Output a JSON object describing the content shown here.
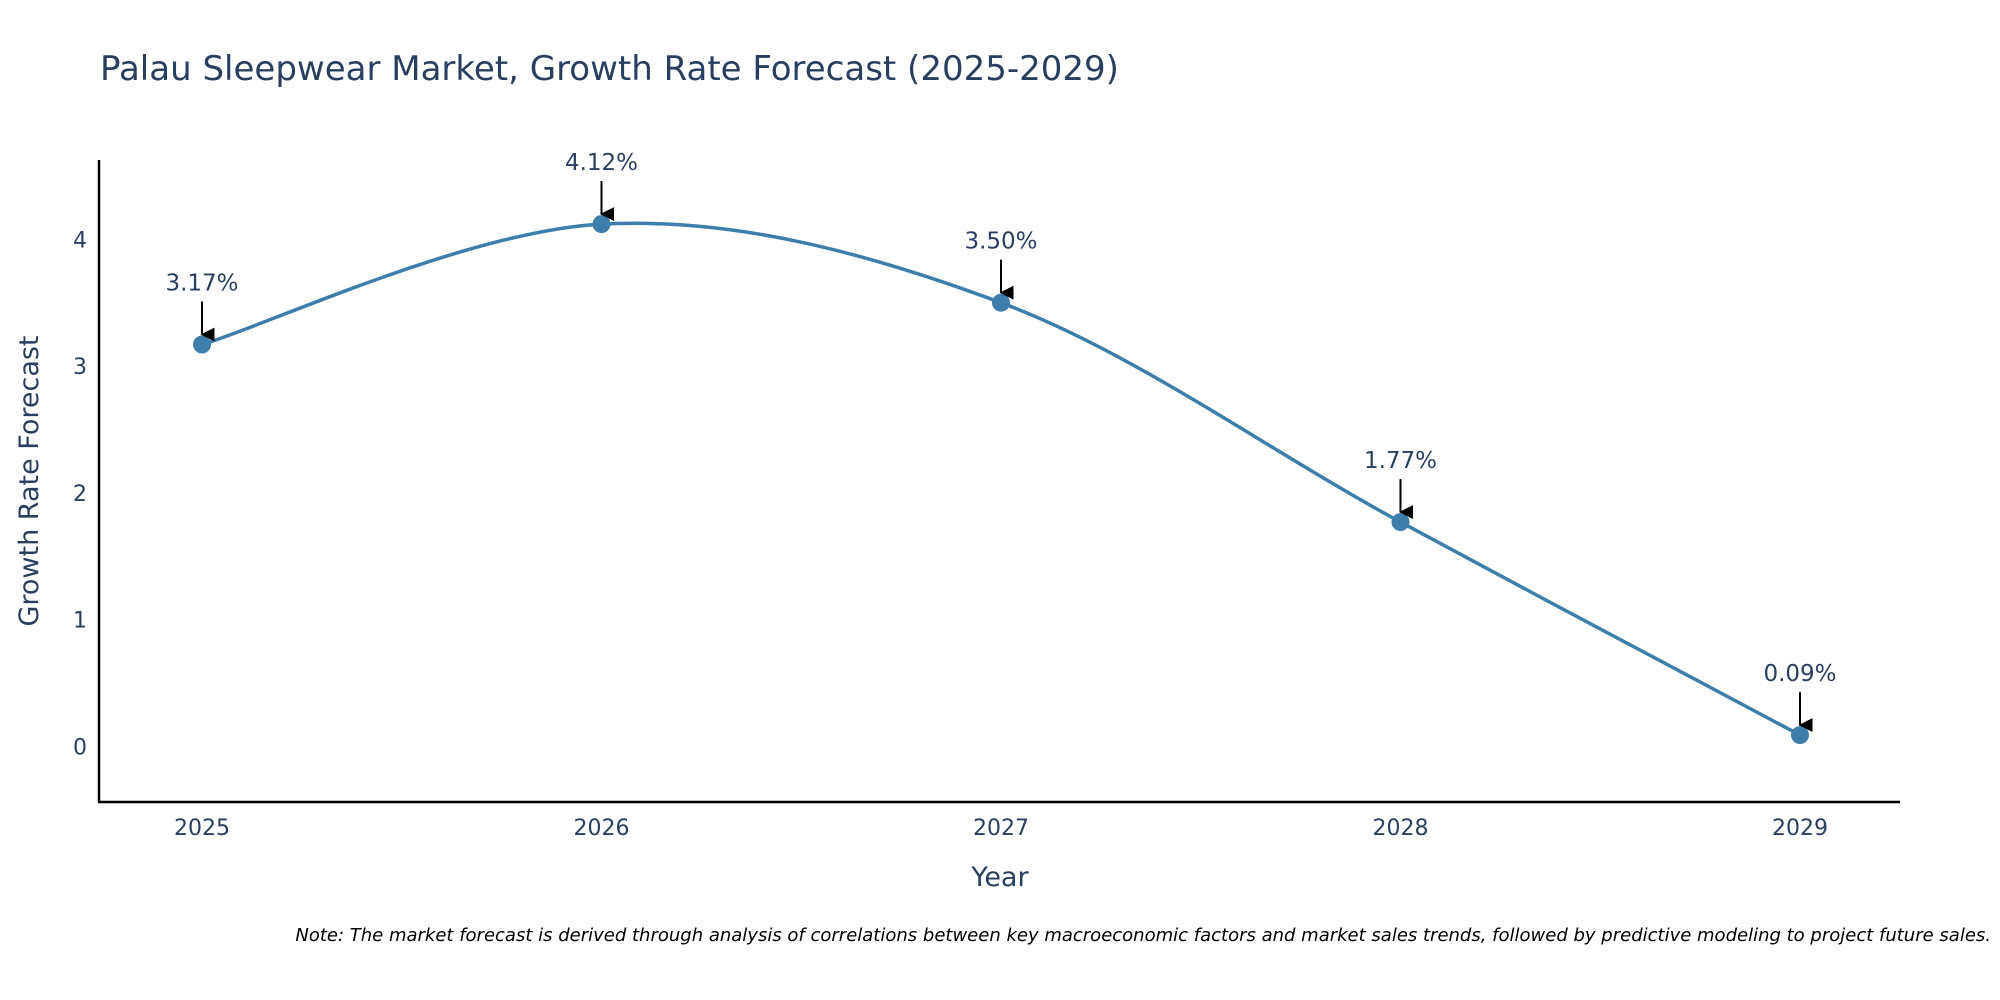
{
  "chart_data": {
    "type": "line",
    "title": "Palau Sleepwear Market, Growth Rate Forecast (2025-2029)",
    "xlabel": "Year",
    "ylabel": "Growth Rate Forecast",
    "categories": [
      "2025",
      "2026",
      "2027",
      "2028",
      "2029"
    ],
    "series": [
      {
        "name": "Growth Rate Forecast",
        "values": [
          3.17,
          4.12,
          3.5,
          1.77,
          0.09
        ],
        "labels": [
          "3.17%",
          "4.12%",
          "3.50%",
          "1.77%",
          "0.09%"
        ],
        "line_shape": "spline"
      }
    ],
    "y_ticks": [
      "0",
      "1",
      "2",
      "3",
      "4"
    ],
    "ylim": [
      -0.44,
      4.62
    ],
    "grid": false,
    "legend": "none",
    "note": "Note: The market forecast is derived through analysis of correlations between key macroeconomic factors and market sales trends, followed by predictive modeling to project future sales.",
    "colors": {
      "line": "#3d7eac",
      "marker": "#3d7eac",
      "arrow": "#000000",
      "text": "#2a3f5f",
      "axis": "#000000"
    }
  }
}
